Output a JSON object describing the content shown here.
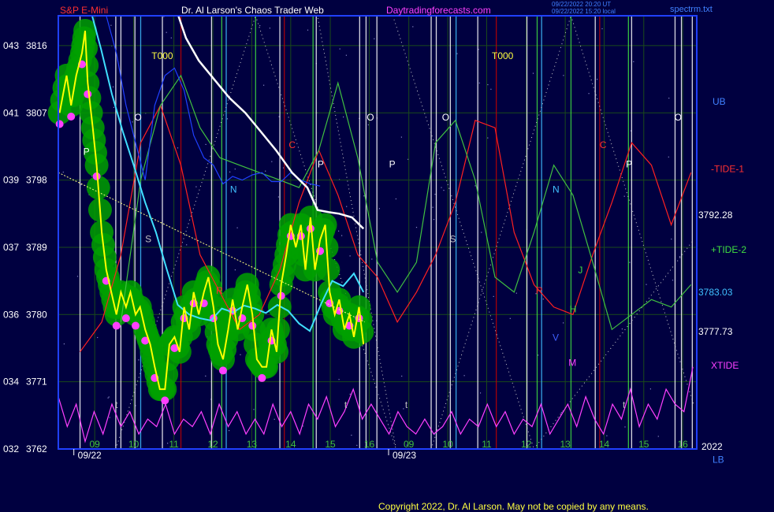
{
  "header": {
    "symbol": "S&P E-Mini",
    "title": "Dr. Al Larson's Chaos Trader Web",
    "site": "Daytradingforecasts.com",
    "stamp1": "09/22/2022 20:20 UT",
    "stamp2": "09/22/2022 15:20 local",
    "file": "spectrm.txt"
  },
  "footer": {
    "copyright": "Copyright 2022, Dr. Al Larson. May not be copied by any means."
  },
  "colors": {
    "background": "#000040",
    "price": "#ffff00",
    "bands": "#00a000",
    "tide1": "#ff2020",
    "tide2": "#40c040",
    "xtide": "#ff40ff",
    "ma_white": "#ffffff",
    "ma_cyan": "#40e0ff",
    "ma_blue": "#2040ff"
  },
  "chart_data": {
    "type": "line",
    "ylim": [
      3762,
      3820
    ],
    "x_range": [
      0,
      100
    ],
    "y_ticks": [
      {
        "value": 3816,
        "label": "3816",
        "alt": "043"
      },
      {
        "value": 3807,
        "label": "3807",
        "alt": "041"
      },
      {
        "value": 3798,
        "label": "3798",
        "alt": "039"
      },
      {
        "value": 3789,
        "label": "3789",
        "alt": "037"
      },
      {
        "value": 3780,
        "label": "3780",
        "alt": "036"
      },
      {
        "value": 3771,
        "label": "3771",
        "alt": "034"
      },
      {
        "value": 3762,
        "label": "3762",
        "alt": "032"
      }
    ],
    "x_ticks": [
      {
        "x": 5.7,
        "label": "09"
      },
      {
        "x": 11.8,
        "label": "10"
      },
      {
        "x": 18.1,
        "label": "11"
      },
      {
        "x": 24.2,
        "label": "12"
      },
      {
        "x": 30.3,
        "label": "13"
      },
      {
        "x": 36.4,
        "label": "14"
      },
      {
        "x": 42.6,
        "label": "15"
      },
      {
        "x": 48.7,
        "label": "16"
      },
      {
        "x": 54.9,
        "label": "09"
      },
      {
        "x": 61.0,
        "label": "10"
      },
      {
        "x": 67.1,
        "label": "11"
      },
      {
        "x": 73.3,
        "label": "12"
      },
      {
        "x": 79.4,
        "label": "13"
      },
      {
        "x": 85.5,
        "label": "14"
      },
      {
        "x": 91.7,
        "label": "15"
      },
      {
        "x": 97.8,
        "label": "16"
      }
    ],
    "dates": [
      {
        "x": 4.9,
        "label": "09/22"
      },
      {
        "x": 54.2,
        "label": "09/23"
      }
    ],
    "right_labels": [
      {
        "y": 3808.5,
        "label": "UB",
        "key": "ub"
      },
      {
        "y": 3799.5,
        "label": "-TIDE-1",
        "key": "tide1"
      },
      {
        "y": 3793.3,
        "label": "3792.28",
        "key": "p1"
      },
      {
        "y": 3788.7,
        "label": "+TIDE-2",
        "key": "tide2"
      },
      {
        "y": 3783.0,
        "label": "3783.03",
        "key": "p2"
      },
      {
        "y": 3777.7,
        "label": "3777.73",
        "key": "p3"
      },
      {
        "y": 3773.2,
        "label": "XTIDE",
        "key": "xtide"
      },
      {
        "y": 3762.3,
        "label": "2022",
        "key": "year"
      },
      {
        "y": 3760.6,
        "label": "LB",
        "key": "lb"
      }
    ],
    "annotations": [
      {
        "x": 14.6,
        "y": 3814.2,
        "text": "T000",
        "color": "#ffff40"
      },
      {
        "x": 67.9,
        "y": 3814.2,
        "text": "T000",
        "color": "#ffff40"
      },
      {
        "x": 3.9,
        "y": 3801.4,
        "text": "P",
        "color": "#ffffff"
      },
      {
        "x": 40.6,
        "y": 3799.7,
        "text": "P",
        "color": "#ffffff"
      },
      {
        "x": 51.8,
        "y": 3799.7,
        "text": "P",
        "color": "#ffffff"
      },
      {
        "x": 88.9,
        "y": 3799.7,
        "text": "P",
        "color": "#ffffff"
      },
      {
        "x": 11.9,
        "y": 3806.0,
        "text": "O",
        "color": "#ffffff"
      },
      {
        "x": 48.3,
        "y": 3806.0,
        "text": "O",
        "color": "#ffffff"
      },
      {
        "x": 60.1,
        "y": 3806.0,
        "text": "O",
        "color": "#ffffff"
      },
      {
        "x": 96.5,
        "y": 3806.0,
        "text": "O",
        "color": "#ffffff"
      },
      {
        "x": 26.9,
        "y": 3796.3,
        "text": "N",
        "color": "#40c0ff"
      },
      {
        "x": 77.4,
        "y": 3796.3,
        "text": "N",
        "color": "#40c0ff"
      },
      {
        "x": 36.1,
        "y": 3802.3,
        "text": "C",
        "color": "#ff3030"
      },
      {
        "x": 84.8,
        "y": 3802.3,
        "text": "C",
        "color": "#ff3030"
      },
      {
        "x": 61.3,
        "y": 3789.7,
        "text": "S",
        "color": "#c0c0c0"
      },
      {
        "x": 13.6,
        "y": 3789.7,
        "text": "S",
        "color": "#c0c0c0"
      },
      {
        "x": 74.8,
        "y": 3782.8,
        "text": "R",
        "color": "#ff3030"
      },
      {
        "x": 24.7,
        "y": 3782.8,
        "text": "R",
        "color": "#ff3030"
      },
      {
        "x": 80.1,
        "y": 3780.3,
        "text": "H",
        "color": "#40e040"
      },
      {
        "x": 81.4,
        "y": 3785.5,
        "text": "J",
        "color": "#40e040"
      },
      {
        "x": 79.9,
        "y": 3773.1,
        "text": "M",
        "color": "#ff40ff"
      },
      {
        "x": 77.4,
        "y": 3776.5,
        "text": "V",
        "color": "#4060ff"
      },
      {
        "x": 8.9,
        "y": 3767.5,
        "text": "t",
        "color": "#c0c0c0"
      },
      {
        "x": 44.8,
        "y": 3767.5,
        "text": "t",
        "color": "#c0c0c0"
      },
      {
        "x": 54.3,
        "y": 3767.5,
        "text": "t",
        "color": "#c0c0c0"
      },
      {
        "x": 88.4,
        "y": 3767.5,
        "text": "t",
        "color": "#c0c0c0"
      }
    ],
    "vlines": [
      {
        "x": 3.4,
        "color": "#ffffff"
      },
      {
        "x": 9.0,
        "color": "#ffffff"
      },
      {
        "x": 9.8,
        "color": "#ffffff"
      },
      {
        "x": 12.0,
        "color": "#ffffff"
      },
      {
        "x": 12.9,
        "color": "#40c0ff"
      },
      {
        "x": 16.3,
        "color": "#ffffff"
      },
      {
        "x": 19.2,
        "color": "#c00000"
      },
      {
        "x": 24.0,
        "color": "#ffffff"
      },
      {
        "x": 25.6,
        "color": "#40e040"
      },
      {
        "x": 26.3,
        "color": "#40c0ff"
      },
      {
        "x": 30.9,
        "color": "#40e040"
      },
      {
        "x": 34.7,
        "color": "#ffffff"
      },
      {
        "x": 35.4,
        "color": "#c00000"
      },
      {
        "x": 39.9,
        "color": "#40e040"
      },
      {
        "x": 40.4,
        "color": "#ffffff"
      },
      {
        "x": 47.2,
        "color": "#ffffff"
      },
      {
        "x": 48.2,
        "color": "#ffffff"
      },
      {
        "x": 49.9,
        "color": "#ffffff"
      },
      {
        "x": 58.4,
        "color": "#ffffff"
      },
      {
        "x": 59.2,
        "color": "#ffffff"
      },
      {
        "x": 61.4,
        "color": "#ffffff"
      },
      {
        "x": 62.3,
        "color": "#40c0ff"
      },
      {
        "x": 65.7,
        "color": "#ffffff"
      },
      {
        "x": 68.6,
        "color": "#c00000"
      },
      {
        "x": 73.4,
        "color": "#ffffff"
      },
      {
        "x": 75.0,
        "color": "#40e040"
      },
      {
        "x": 75.7,
        "color": "#40c0ff"
      },
      {
        "x": 80.3,
        "color": "#40e040"
      },
      {
        "x": 84.1,
        "color": "#ffffff"
      },
      {
        "x": 84.8,
        "color": "#c00000"
      },
      {
        "x": 89.3,
        "color": "#40e040"
      },
      {
        "x": 89.8,
        "color": "#ffffff"
      },
      {
        "x": 96.6,
        "color": "#ffffff"
      },
      {
        "x": 97.6,
        "color": "#ffffff"
      },
      {
        "x": 99.3,
        "color": "#ffffff"
      }
    ],
    "series": [
      {
        "key": "price",
        "x": [
          0.2,
          1.3,
          2.0,
          2.8,
          3.7,
          4.2,
          4.6,
          5.4,
          6.0,
          6.8,
          7.5,
          8.3,
          9.1,
          9.8,
          10.6,
          11.3,
          12.1,
          12.8,
          13.6,
          14.4,
          15.1,
          15.9,
          16.7,
          17.4,
          18.2,
          19.0,
          19.7,
          20.5,
          21.2,
          22.0,
          22.8,
          23.5,
          24.3,
          25.0,
          25.8,
          26.6,
          27.3,
          28.1,
          28.8,
          29.6,
          30.4,
          31.1,
          31.9,
          32.6,
          33.4,
          34.2,
          34.9,
          35.7,
          36.4,
          37.2,
          38.0,
          38.7,
          39.5,
          40.2,
          41.0,
          41.8,
          42.5,
          43.3,
          44.0,
          44.8,
          45.6,
          46.3,
          47.1,
          47.8
        ],
        "y": [
          3807,
          3812,
          3808,
          3812,
          3815,
          3818,
          3811,
          3805,
          3800,
          3791,
          3786,
          3783,
          3780,
          3783,
          3781,
          3783,
          3780,
          3781,
          3778,
          3776,
          3773,
          3770,
          3770,
          3776,
          3777,
          3775,
          3781,
          3778,
          3783,
          3780,
          3783,
          3785,
          3781,
          3776,
          3774,
          3778,
          3782,
          3778,
          3781,
          3784,
          3780,
          3774,
          3773,
          3773,
          3778,
          3775,
          3784,
          3788,
          3792,
          3789,
          3792,
          3786,
          3793,
          3786,
          3790,
          3792,
          3783,
          3780,
          3782,
          3778,
          3780,
          3777,
          3781,
          3776
        ]
      },
      {
        "key": "ma_white",
        "x": [
          18.8,
          20.0,
          22.0,
          24.4,
          26.8,
          29.3,
          31.7,
          34.1,
          36.6,
          39.0,
          40.6,
          42.4,
          44.0,
          46.0,
          47.8
        ],
        "y": [
          3820,
          3817,
          3814,
          3811.5,
          3809,
          3807,
          3804.5,
          3802,
          3799,
          3797,
          3794,
          3793.7,
          3793.5,
          3793,
          3791.5
        ]
      },
      {
        "key": "ma_cyan",
        "x": [
          5.3,
          6.7,
          8.4,
          10.1,
          11.8,
          13.6,
          15.3,
          17.0,
          18.7,
          20.5,
          22.2,
          23.9,
          25.6,
          27.4,
          29.1,
          30.8,
          32.5,
          34.3,
          36.0,
          37.7,
          39.4,
          41.2,
          42.9,
          44.6,
          46.3,
          47.8
        ],
        "y": [
          3820,
          3815.5,
          3809.5,
          3804.5,
          3800,
          3795,
          3791,
          3786,
          3781.3,
          3780,
          3779.5,
          3779.2,
          3780.8,
          3780.3,
          3781.2,
          3780.8,
          3780.2,
          3781.3,
          3780.5,
          3778.8,
          3777.8,
          3781.5,
          3784.5,
          3783.8,
          3785.5,
          3783
        ]
      },
      {
        "key": "tide1",
        "x": [
          3.4,
          6.8,
          9.8,
          12.9,
          16.0,
          19.2,
          22.2,
          25.3,
          28.4,
          31.5,
          34.7,
          37.7,
          40.8,
          43.8,
          46.9,
          50.0,
          53.1,
          56.1,
          59.1,
          62.2,
          65.3,
          68.4,
          71.4,
          74.5,
          77.6,
          80.6,
          83.7,
          86.7,
          89.8,
          92.9,
          96.0,
          99.1
        ],
        "y": [
          3775,
          3779,
          3788,
          3803,
          3808,
          3800,
          3788,
          3783,
          3778,
          3780,
          3786,
          3795,
          3802,
          3796,
          3788,
          3785,
          3779,
          3783,
          3788,
          3795,
          3806,
          3805,
          3791,
          3784,
          3781,
          3780,
          3788,
          3795,
          3803,
          3800,
          3792,
          3799
        ]
      },
      {
        "key": "tide2",
        "x": [
          9.8,
          12.9,
          16.0,
          19.2,
          22.2,
          25.3,
          28.4,
          31.5,
          34.7,
          37.7,
          40.8,
          43.8,
          46.9,
          50.0,
          53.1,
          56.1,
          59.1,
          62.2,
          65.3,
          68.4,
          71.4,
          74.5,
          77.6,
          80.6,
          83.7,
          86.7,
          89.8,
          92.9,
          96.0,
          99.1
        ],
        "y": [
          3779,
          3798,
          3808,
          3812,
          3805,
          3801,
          3800,
          3799,
          3798,
          3797,
          3802,
          3811,
          3801,
          3787,
          3783,
          3787,
          3803,
          3806,
          3798,
          3785,
          3783,
          3791,
          3800,
          3796,
          3787,
          3778,
          3780,
          3782,
          3781,
          3784
        ]
      },
      {
        "key": "xtide",
        "x": [
          0.0,
          1.4,
          2.8,
          4.2,
          5.6,
          7.0,
          8.4,
          9.8,
          11.2,
          12.6,
          14.0,
          15.4,
          16.8,
          18.2,
          19.6,
          21.0,
          22.4,
          23.8,
          25.2,
          26.6,
          28.0,
          29.4,
          30.8,
          32.2,
          33.6,
          35.0,
          36.4,
          37.8,
          39.2,
          40.6,
          42.0,
          43.4,
          44.8,
          46.2,
          47.6,
          49.0,
          50.4,
          51.8,
          53.2,
          54.6,
          56.0,
          57.4,
          58.8,
          60.2,
          61.6,
          63.0,
          64.4,
          65.8,
          67.2,
          68.6,
          70.0,
          71.4,
          72.8,
          74.2,
          75.6,
          77.0,
          78.4,
          79.8,
          81.2,
          82.6,
          84.0,
          85.4,
          86.8,
          88.2,
          89.6,
          91.0,
          92.4,
          93.8,
          95.2,
          96.6,
          98.0,
          99.4
        ],
        "y": [
          3769,
          3765,
          3768,
          3763,
          3767,
          3764,
          3768,
          3765,
          3767,
          3764,
          3766,
          3765,
          3768,
          3764,
          3766,
          3765,
          3767,
          3764,
          3768,
          3765,
          3767,
          3764,
          3766,
          3764,
          3768,
          3765,
          3767,
          3764,
          3768,
          3766,
          3769,
          3765,
          3767,
          3770,
          3766,
          3768,
          3766,
          3764,
          3767,
          3765,
          3764,
          3766,
          3764,
          3765,
          3767,
          3764,
          3766,
          3765,
          3768,
          3765,
          3767,
          3764,
          3766,
          3765,
          3768,
          3764,
          3766,
          3768,
          3765,
          3769,
          3766,
          3764,
          3768,
          3766,
          3770,
          3765,
          3768,
          3766,
          3770,
          3768,
          3767,
          3773
        ]
      },
      {
        "key": "ma_blue",
        "x": [
          7.5,
          9.1,
          10.6,
          12.1,
          13.6,
          15.1,
          16.7,
          18.2,
          19.7,
          21.2,
          22.8,
          24.3,
          25.8,
          27.3,
          28.8,
          30.4,
          31.9,
          33.4,
          34.9,
          36.4,
          38.0,
          39.5,
          41.0
        ],
        "y": [
          3820,
          3815,
          3808,
          3803,
          3798,
          3808,
          3812,
          3813,
          3810,
          3804,
          3801,
          3800,
          3797.5,
          3798.5,
          3798,
          3798.7,
          3799,
          3797.8,
          3797.8,
          3799,
          3798,
          3797.5,
          3797.2
        ]
      },
      {
        "key": "trend",
        "x": [
          0.0,
          48.0
        ],
        "y": [
          3799,
          3779
        ]
      }
    ],
    "diag_lines": [
      {
        "x": [
          9.0,
          30.9
        ],
        "y": [
          3762,
          3820
        ]
      },
      {
        "x": [
          30.9,
          52.9
        ],
        "y": [
          3820,
          3762
        ]
      },
      {
        "x": [
          52.9,
          40.6
        ],
        "y": [
          3762,
          3820
        ]
      },
      {
        "x": [
          58.4,
          80.3
        ],
        "y": [
          3762,
          3820
        ]
      },
      {
        "x": [
          80.3,
          99.5
        ],
        "y": [
          3820,
          3768
        ]
      },
      {
        "x": [
          29.0,
          52.0
        ],
        "y": [
          3820,
          3820
        ]
      },
      {
        "x": [
          52.4,
          74.5
        ],
        "y": [
          3820,
          3762
        ]
      },
      {
        "x": [
          74.5,
          99.5
        ],
        "y": [
          3762,
          3790
        ]
      }
    ]
  }
}
